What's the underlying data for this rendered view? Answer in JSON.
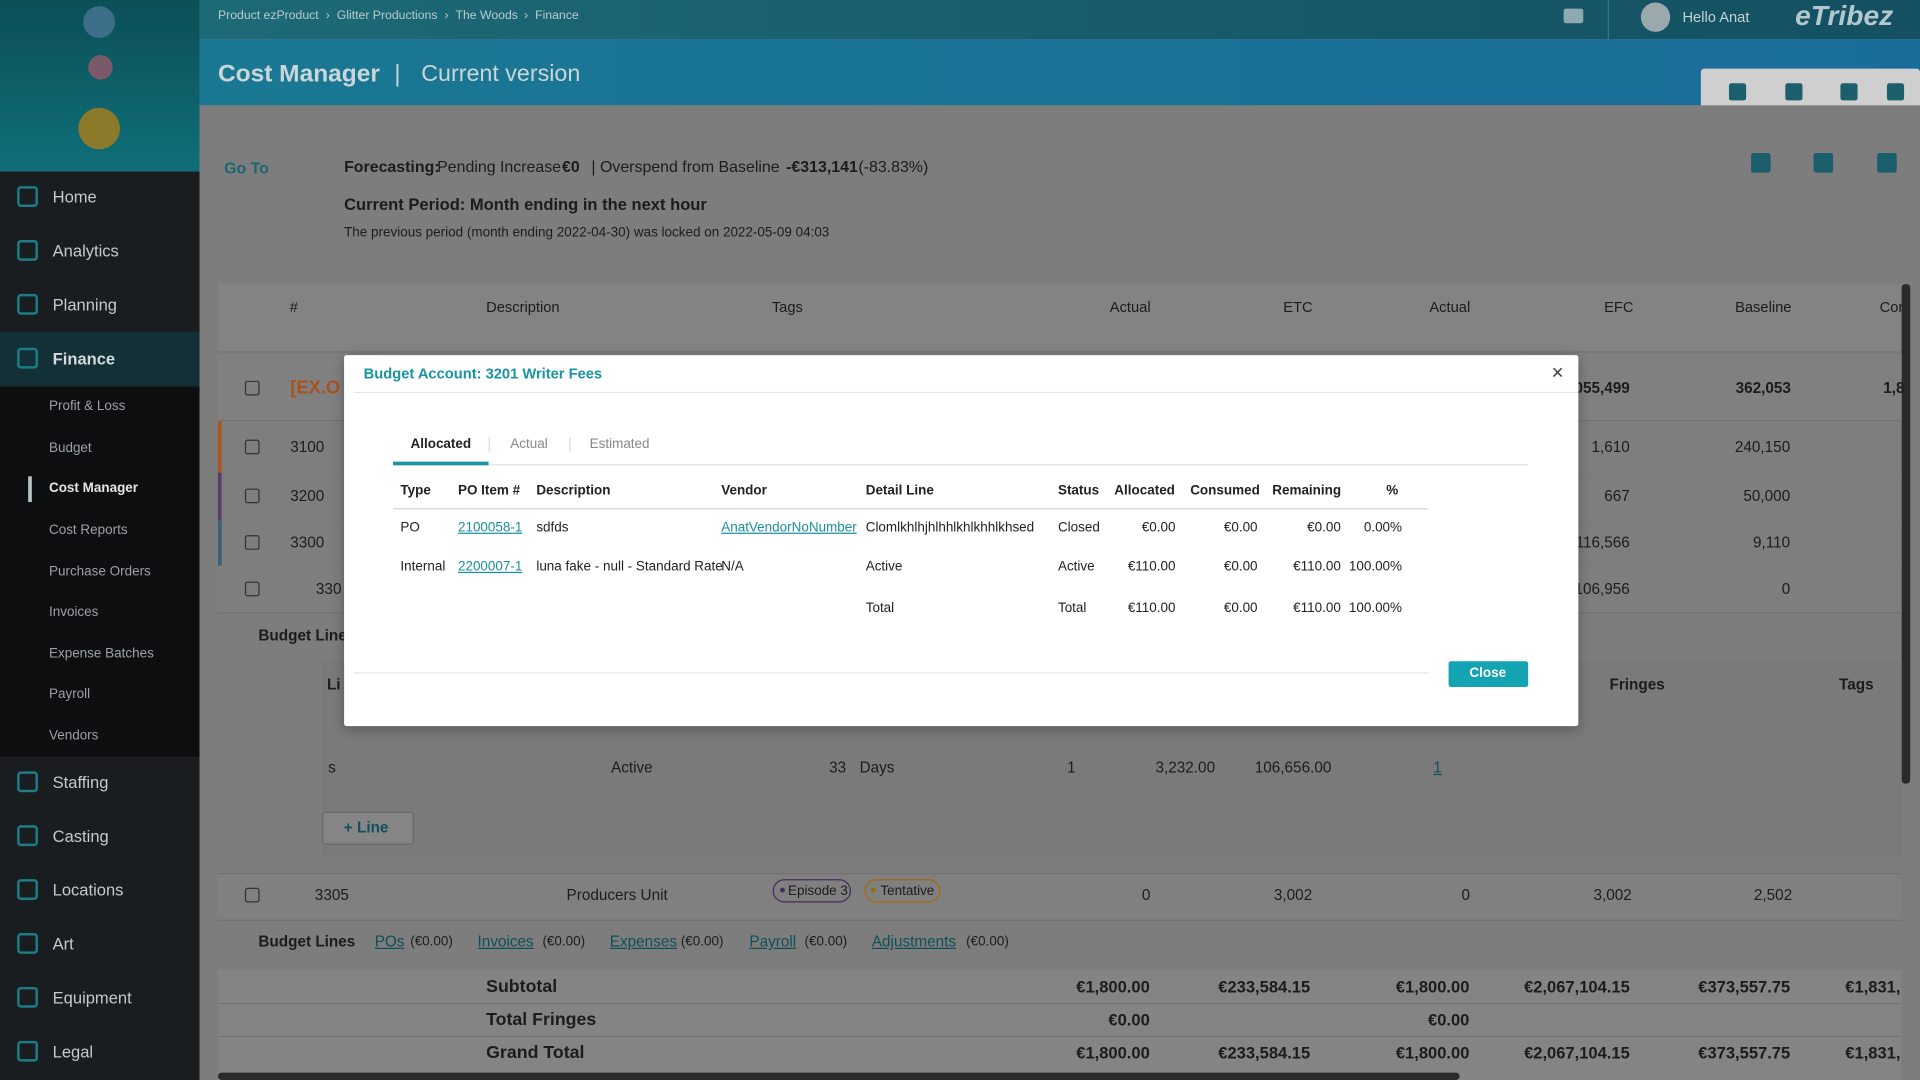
{
  "topbar": {
    "breadcrumb": [
      "Product ezProduct",
      "Glitter Productions",
      "The Woods",
      "Finance"
    ],
    "separator": "›",
    "user": "Hello Anat",
    "brand": "eTribez"
  },
  "header": {
    "title": "Cost Manager",
    "divider": "|",
    "subtitle": "Current version"
  },
  "sidebar": {
    "nav": [
      "Home",
      "Analytics",
      "Planning",
      "Finance"
    ],
    "finance_menu": [
      "Profit & Loss",
      "Budget",
      "Cost Manager",
      "Cost Reports",
      "Purchase Orders",
      "Invoices",
      "Expense Batches",
      "Payroll",
      "Vendors"
    ],
    "nav_after": [
      "Staffing",
      "Casting",
      "Locations",
      "Art",
      "Equipment",
      "Legal"
    ]
  },
  "toolbar": {
    "goto": "Go To"
  },
  "forecast": {
    "label": "Forecasting:",
    "pending_label": "Pending Increase",
    "pending": "€0",
    "overspend_label": "| Overspend from Baseline",
    "overspend": "-€313,141",
    "overspend_pct": "(-83.83%)",
    "period": "Current Period: Month ending in the next hour",
    "lock_note": "The previous period (month ending 2022-04-30) was locked on 2022-05-09 04:03"
  },
  "table": {
    "headers": [
      "#",
      "Description",
      "Tags",
      "Actual",
      "ETC",
      "Actual",
      "EFC",
      "Baseline",
      "Cor"
    ],
    "group": {
      "code": "[EX.O",
      "efc": "055,499",
      "baseline": "362,053",
      "co": "1,8"
    },
    "accounts": [
      {
        "code": "3100",
        "efc": "1,610",
        "baseline": "240,150"
      },
      {
        "code": "3200",
        "efc": "667",
        "baseline": "50,000"
      },
      {
        "code": "3300",
        "efc": "116,566",
        "baseline": "9,110"
      },
      {
        "code": "330",
        "efc": "106,956",
        "baseline": "0"
      }
    ],
    "budget_line_label": "Budget Line",
    "sub_headers": [
      "Li",
      "Fringes",
      "Tags"
    ],
    "line": [
      "s",
      "Active",
      "33",
      "Days",
      "1",
      "3,232.00",
      "106,656.00",
      "1"
    ],
    "add_line": "+ Line",
    "row_3305": {
      "code": "3305",
      "description": "Producers Unit",
      "tags": [
        "Episode 3",
        "Tentative"
      ],
      "actual": "0",
      "etc": "3,002",
      "actual2": "0",
      "efc": "3,002",
      "baseline": "2,502"
    },
    "budget_lines": {
      "label": "Budget Lines",
      "links": [
        {
          "name": "POs",
          "amount": "(€0.00)"
        },
        {
          "name": "Invoices",
          "amount": "(€0.00)"
        },
        {
          "name": "Expenses",
          "amount": "(€0.00)"
        },
        {
          "name": "Payroll",
          "amount": "(€0.00)"
        },
        {
          "name": "Adjustments",
          "amount": "(€0.00)"
        }
      ]
    },
    "totals": {
      "subtotal_label": "Subtotal",
      "subtotal": [
        "€1,800.00",
        "€233,584.15",
        "€1,800.00",
        "€2,067,104.15",
        "€373,557.75",
        "€1,831,"
      ],
      "fringes_label": "Total Fringes",
      "fringes": [
        "€0.00",
        "€0.00"
      ],
      "grand_label": "Grand Total",
      "grand": [
        "€1,800.00",
        "€233,584.15",
        "€1,800.00",
        "€2,067,104.15",
        "€373,557.75",
        "€1,831,"
      ]
    }
  },
  "modal": {
    "title": "Budget Account: 3201 Writer Fees",
    "close_x": "×",
    "tabs": [
      "Allocated",
      "Actual",
      "Estimated"
    ],
    "headers": [
      "Type",
      "PO Item #",
      "Description",
      "Vendor",
      "Detail Line",
      "Status",
      "Allocated",
      "Consumed",
      "Remaining",
      "%"
    ],
    "rows": [
      [
        "PO",
        "2100058-1",
        "sdfds",
        "AnatVendorNoNumber",
        "Clomlkhlhjhlhhlkhlkhhlkhsed",
        "Closed",
        "€0.00",
        "€0.00",
        "€0.00",
        "0.00%"
      ],
      [
        "Internal",
        "2200007-1",
        "luna fake - null - Standard Rate",
        "N/A",
        "Active",
        "Active",
        "€110.00",
        "€0.00",
        "€110.00",
        "100.00%"
      ]
    ],
    "total": [
      "Total",
      "Total",
      "€110.00",
      "€0.00",
      "€110.00",
      "100.00%"
    ],
    "close": "Close"
  }
}
